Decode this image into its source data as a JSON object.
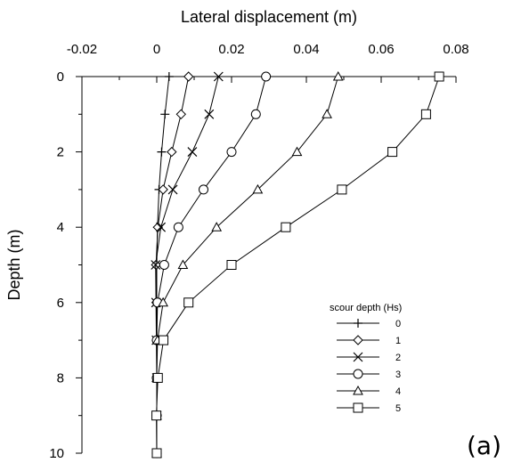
{
  "panel_label": "(a)",
  "chart_data": {
    "type": "line",
    "xlabel": "Lateral displacement (m)",
    "ylabel": "Depth (m)",
    "xlim": [
      -0.02,
      0.08
    ],
    "ylim": [
      0,
      10
    ],
    "x_axis_position": "top",
    "y_inverted": true,
    "x_ticks": [
      -0.02,
      0,
      0.02,
      0.04,
      0.06,
      0.08
    ],
    "x_tick_labels": [
      "-0.02",
      "0",
      "0.02",
      "0.04",
      "0.06",
      "0.08"
    ],
    "y_ticks": [
      0,
      2,
      4,
      6,
      8,
      10
    ],
    "y_tick_labels": [
      "0",
      "2",
      "4",
      "6",
      "8",
      "10"
    ],
    "grid": false,
    "legend_title": "scour depth (Hs)",
    "legend_placement": "lower-right",
    "depths": [
      0,
      1,
      2,
      3,
      4,
      5,
      6,
      7,
      8,
      9,
      10
    ],
    "series": [
      {
        "name": "0",
        "marker": "plus",
        "x": [
          0.0033,
          0.0022,
          0.0013,
          0.0006,
          0.0002,
          0.0,
          0.0,
          0.0,
          0.0,
          0.0,
          0.0
        ]
      },
      {
        "name": "1",
        "marker": "diamond",
        "x": [
          0.0085,
          0.0065,
          0.004,
          0.0017,
          0.0003,
          -0.0002,
          -0.0001,
          0.0,
          0.0,
          0.0,
          0.0
        ]
      },
      {
        "name": "2",
        "marker": "x",
        "x": [
          0.0165,
          0.014,
          0.0095,
          0.0043,
          0.0011,
          -0.0003,
          -0.0002,
          -0.0001,
          0.0,
          0.0,
          0.0
        ]
      },
      {
        "name": "3",
        "marker": "circle",
        "x": [
          0.0292,
          0.0265,
          0.02,
          0.0125,
          0.0058,
          0.002,
          0.0002,
          0.0,
          0.0,
          0.0,
          0.0
        ]
      },
      {
        "name": "4",
        "marker": "triangle",
        "x": [
          0.0485,
          0.0455,
          0.0375,
          0.027,
          0.016,
          0.007,
          0.0017,
          0.0002,
          0.0,
          0.0,
          0.0
        ]
      },
      {
        "name": "5",
        "marker": "square",
        "x": [
          0.0755,
          0.072,
          0.063,
          0.0495,
          0.0345,
          0.02,
          0.0085,
          0.0018,
          0.0003,
          -0.0001,
          0.0
        ]
      }
    ]
  }
}
